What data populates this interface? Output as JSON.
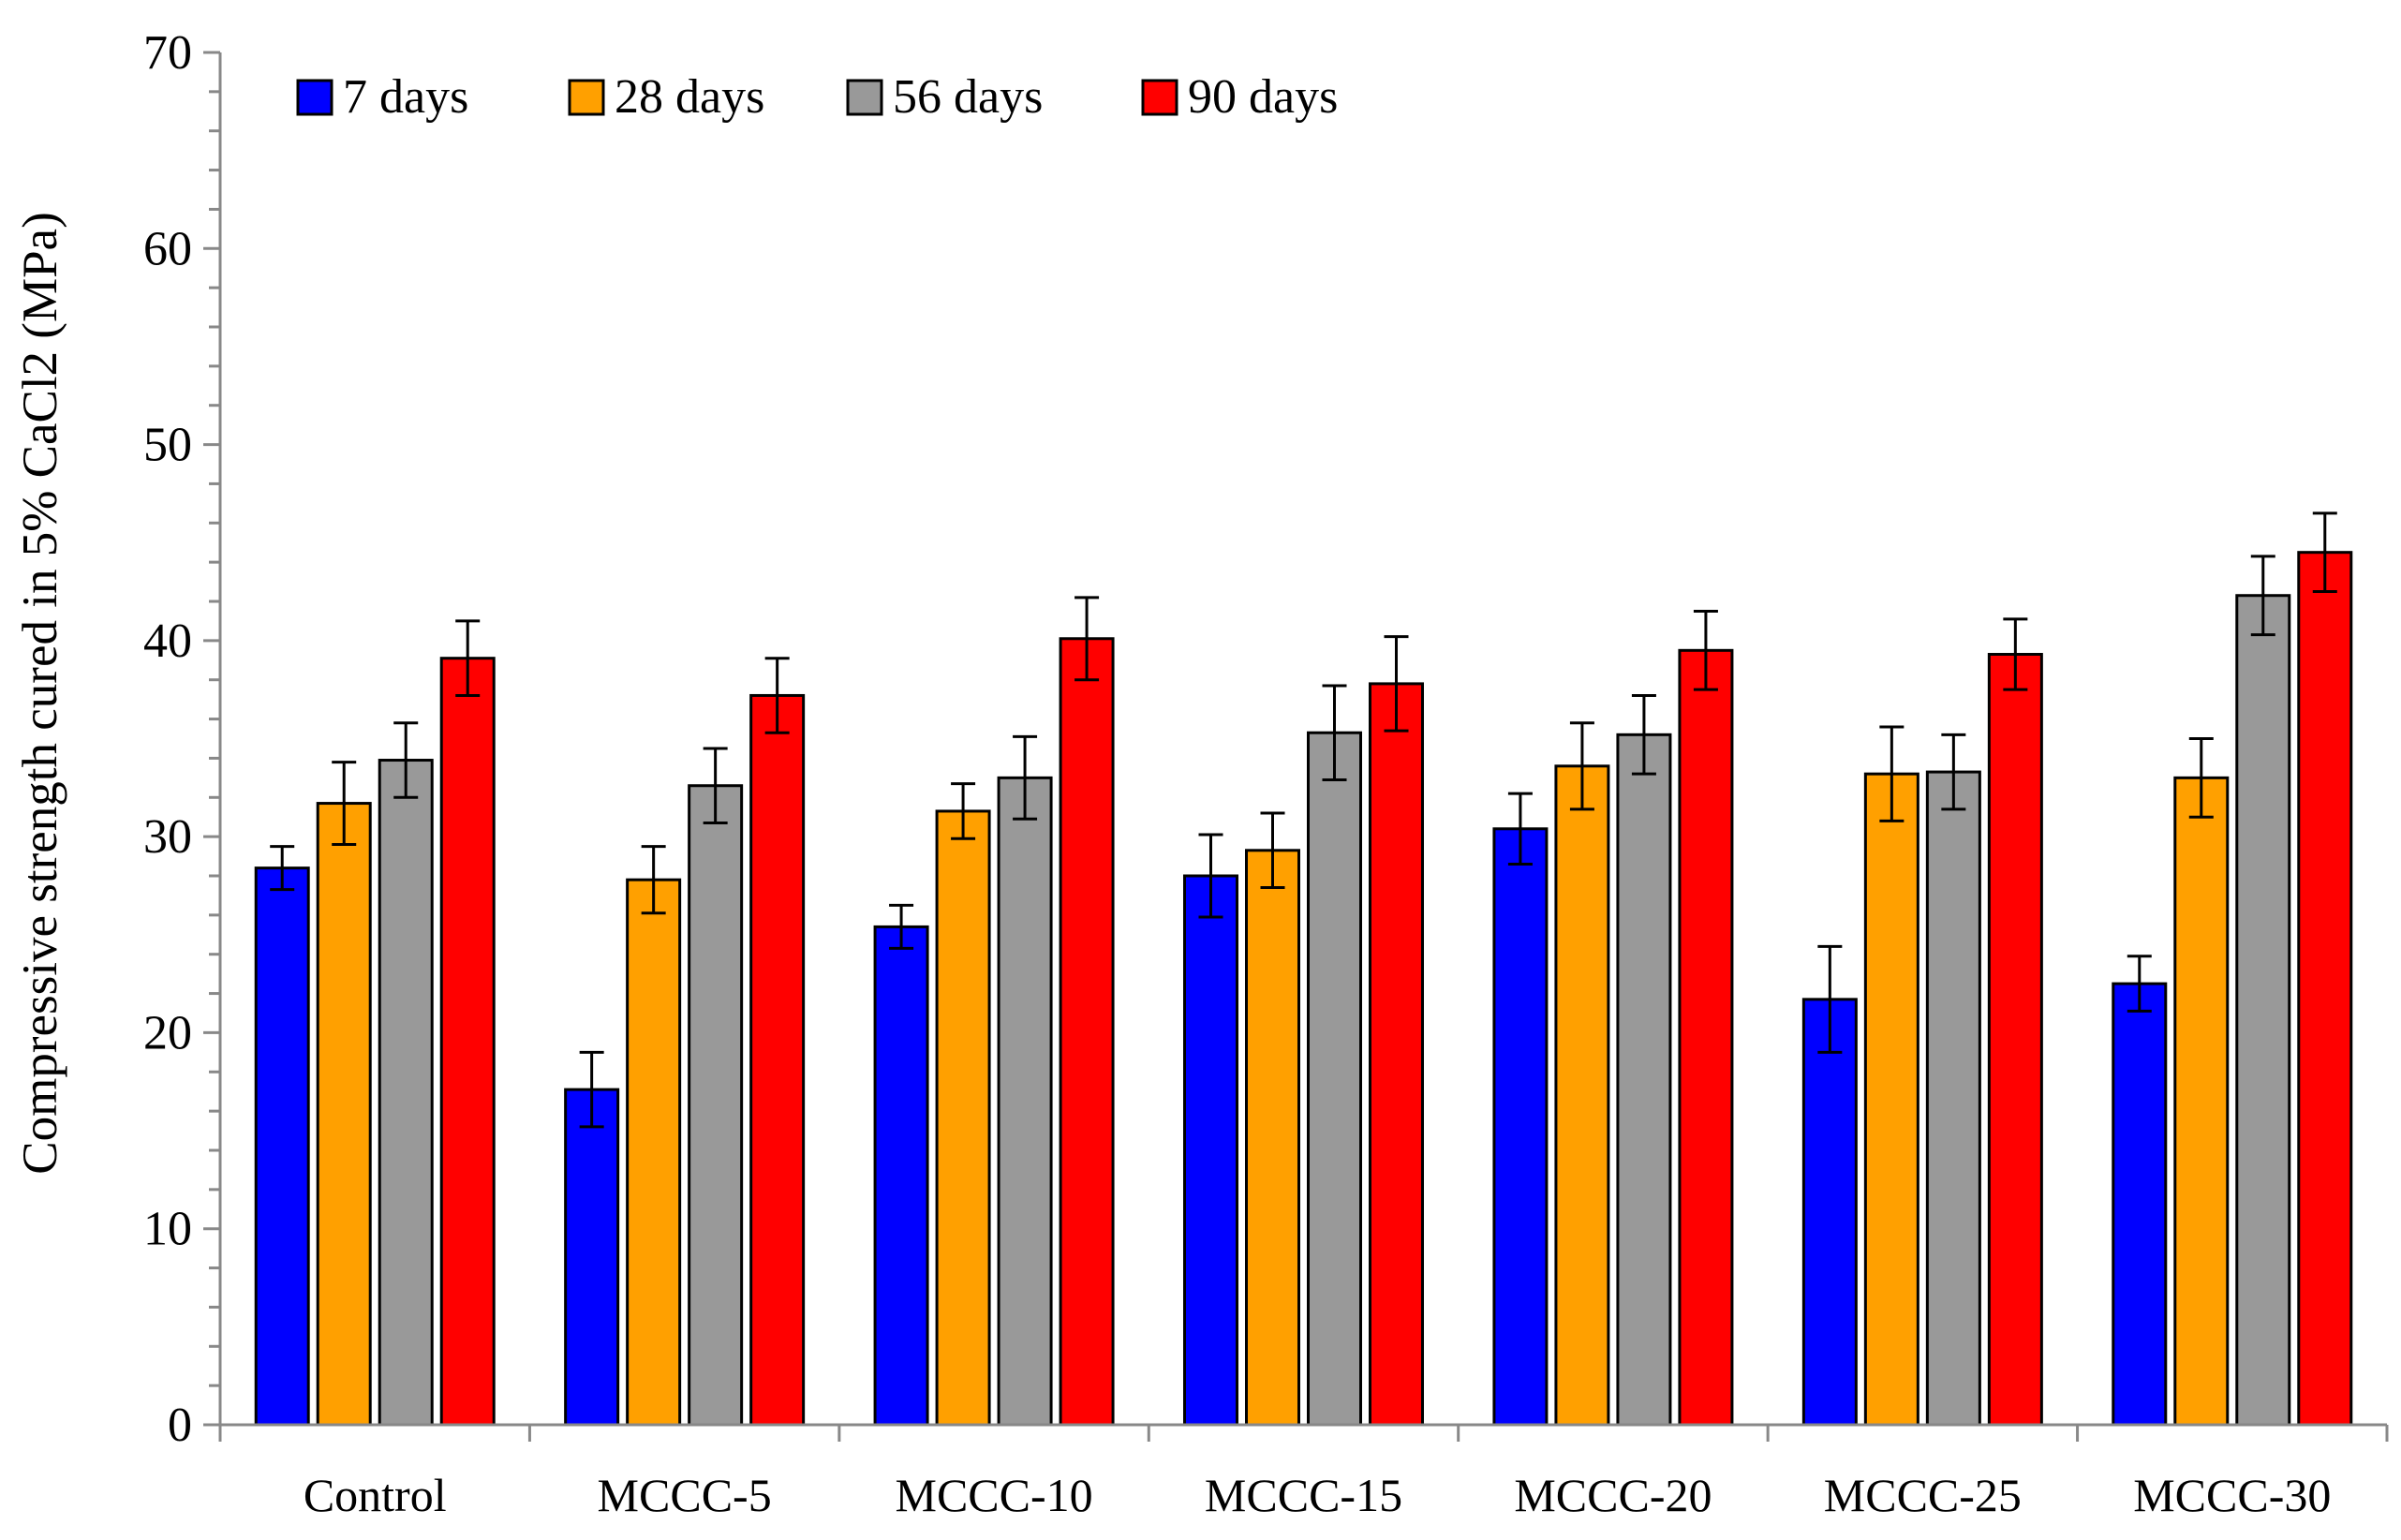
{
  "chart_data": {
    "type": "bar",
    "title": "",
    "xlabel": "",
    "ylabel": "Compressive strength cured in 5% CaCl2 (MPa)",
    "ylim": [
      0,
      70
    ],
    "ytick_step": 10,
    "ytick_labels": [
      "0",
      "10",
      "20",
      "30",
      "40",
      "50",
      "60",
      "70"
    ],
    "legend_position": "top-left",
    "grid": false,
    "categories": [
      "Control",
      "MCCC-5",
      "MCCC-10",
      "MCCC-15",
      "MCCC-20",
      "MCCC-25",
      "MCCC-30"
    ],
    "series": [
      {
        "name": "7 days",
        "color": "#0000FF",
        "values": [
          28.4,
          17.1,
          25.4,
          28.0,
          30.4,
          21.7,
          22.5
        ],
        "errors": [
          1.1,
          1.9,
          1.1,
          2.1,
          1.8,
          2.7,
          1.4
        ]
      },
      {
        "name": "28 days",
        "color": "#FFA000",
        "values": [
          31.7,
          27.8,
          31.3,
          29.3,
          33.6,
          33.2,
          33.0
        ],
        "errors": [
          2.1,
          1.7,
          1.4,
          1.9,
          2.2,
          2.4,
          2.0
        ]
      },
      {
        "name": "56 days",
        "color": "#999999",
        "values": [
          33.9,
          32.6,
          33.0,
          35.3,
          35.2,
          33.3,
          42.3
        ],
        "errors": [
          1.9,
          1.9,
          2.1,
          2.4,
          2.0,
          1.9,
          2.0
        ]
      },
      {
        "name": "90 days",
        "color": "#FF0000",
        "values": [
          39.1,
          37.2,
          40.1,
          37.8,
          39.5,
          39.3,
          44.5
        ],
        "errors": [
          1.9,
          1.9,
          2.1,
          2.4,
          2.0,
          1.8,
          2.0
        ]
      }
    ]
  }
}
